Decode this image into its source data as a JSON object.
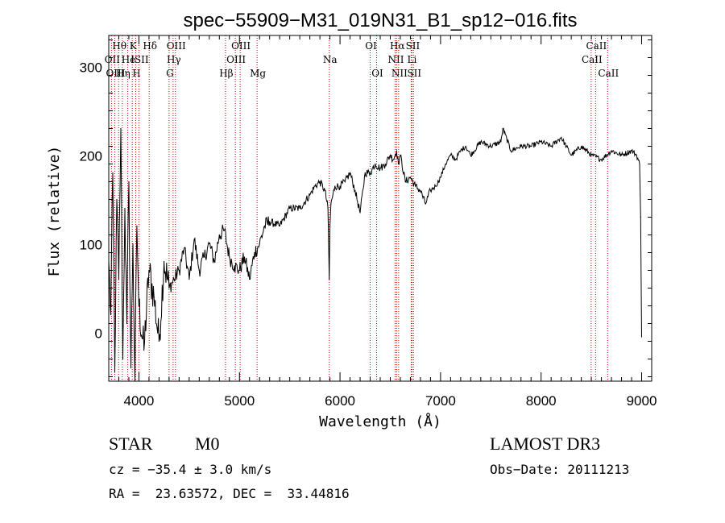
{
  "chart_data": {
    "type": "line",
    "title": "spec−55909−M31_019N31_B1_sp12−016.fits",
    "xlabel": "Wavelength (Å)",
    "ylabel": "Flux (relative)",
    "xlim": [
      3700,
      9100
    ],
    "ylim": [
      -55,
      335
    ],
    "xticks": [
      4000,
      5000,
      6000,
      7000,
      8000,
      9000
    ],
    "yticks": [
      0,
      100,
      200,
      300
    ],
    "line_color": "#000000",
    "marker_color": "#cc0000",
    "spectrum": {
      "name": "flux",
      "x": [
        3700,
        3720,
        3740,
        3760,
        3780,
        3800,
        3820,
        3840,
        3860,
        3880,
        3900,
        3920,
        3940,
        3960,
        3980,
        4000,
        4050,
        4100,
        4150,
        4200,
        4250,
        4300,
        4350,
        4400,
        4450,
        4500,
        4550,
        4600,
        4650,
        4700,
        4750,
        4800,
        4850,
        4900,
        4950,
        5000,
        5050,
        5100,
        5150,
        5200,
        5250,
        5300,
        5400,
        5500,
        5600,
        5700,
        5750,
        5800,
        5850,
        5880,
        5893,
        5900,
        5910,
        5950,
        6000,
        6050,
        6100,
        6150,
        6200,
        6250,
        6300,
        6350,
        6400,
        6450,
        6500,
        6530,
        6563,
        6580,
        6600,
        6650,
        6700,
        6750,
        6800,
        6850,
        6900,
        6950,
        7000,
        7050,
        7100,
        7150,
        7200,
        7250,
        7300,
        7400,
        7500,
        7600,
        7620,
        7700,
        7800,
        7900,
        8000,
        8100,
        8200,
        8300,
        8400,
        8500,
        8600,
        8700,
        8800,
        8900,
        8950,
        8980,
        8990,
        9000
      ],
      "y": [
        80,
        20,
        180,
        -45,
        150,
        60,
        230,
        -30,
        140,
        10,
        170,
        -40,
        100,
        -55,
        120,
        30,
        -20,
        70,
        40,
        -10,
        80,
        50,
        60,
        70,
        95,
        60,
        105,
        70,
        85,
        100,
        80,
        110,
        115,
        85,
        75,
        70,
        85,
        60,
        90,
        100,
        120,
        125,
        120,
        140,
        140,
        155,
        165,
        170,
        160,
        140,
        60,
        120,
        145,
        165,
        165,
        170,
        180,
        160,
        135,
        180,
        180,
        190,
        185,
        190,
        200,
        195,
        205,
        190,
        200,
        170,
        175,
        165,
        160,
        145,
        160,
        165,
        175,
        190,
        200,
        195,
        205,
        210,
        200,
        215,
        210,
        215,
        230,
        205,
        210,
        210,
        215,
        210,
        220,
        200,
        210,
        200,
        195,
        205,
        200,
        205,
        200,
        190,
        130,
        -5
      ]
    },
    "line_markers": [
      {
        "label": "Hθ",
        "wavelength": 3798,
        "row": 1
      },
      {
        "label": "OII",
        "wavelength": 3727,
        "row": 2
      },
      {
        "label": "OIII",
        "wavelength": 3760,
        "row": 3
      },
      {
        "label": "He",
        "wavelength": 3889,
        "row": 2
      },
      {
        "label": "Hη",
        "wavelength": 3835,
        "row": 3
      },
      {
        "label": "K",
        "wavelength": 3934,
        "row": 1
      },
      {
        "label": "H",
        "wavelength": 3968,
        "row": 3
      },
      {
        "label": "ISII",
        "wavelength": 4000,
        "row": 2
      },
      {
        "label": "Hδ",
        "wavelength": 4102,
        "row": 1
      },
      {
        "label": "OIII",
        "wavelength": 4363,
        "row": 1
      },
      {
        "label": "Hγ",
        "wavelength": 4340,
        "row": 2
      },
      {
        "label": "G",
        "wavelength": 4300,
        "row": 3
      },
      {
        "label": "OIII",
        "wavelength": 5007,
        "row": 1
      },
      {
        "label": "OIII",
        "wavelength": 4959,
        "row": 2
      },
      {
        "label": "Hβ",
        "wavelength": 4861,
        "row": 3
      },
      {
        "label": "Mg",
        "wavelength": 5175,
        "row": 3
      },
      {
        "label": "Na",
        "wavelength": 5893,
        "row": 2
      },
      {
        "label": "OI",
        "wavelength": 6300,
        "row": 1
      },
      {
        "label": "OI",
        "wavelength": 6364,
        "row": 3
      },
      {
        "label": "Hα",
        "wavelength": 6563,
        "row": 1
      },
      {
        "label": "SII",
        "wavelength": 6716,
        "row": 1
      },
      {
        "label": "NII",
        "wavelength": 6548,
        "row": 2
      },
      {
        "label": "Li",
        "wavelength": 6708,
        "row": 2
      },
      {
        "label": "NII",
        "wavelength": 6583,
        "row": 3
      },
      {
        "label": "SII",
        "wavelength": 6731,
        "row": 3
      },
      {
        "label": "CaII",
        "wavelength": 8542,
        "row": 1
      },
      {
        "label": "CaII",
        "wavelength": 8498,
        "row": 2
      },
      {
        "label": "CaII",
        "wavelength": 8662,
        "row": 3
      }
    ]
  },
  "info": {
    "object_class": "STAR",
    "subclass": "M0",
    "survey": "LAMOST DR3",
    "redshift_text": "cz = −35.4 ± 3.0 km/s",
    "obs_date_text": "Obs−Date: 20111213",
    "coords_text": "RA =  23.63572, DEC =  33.44816"
  }
}
